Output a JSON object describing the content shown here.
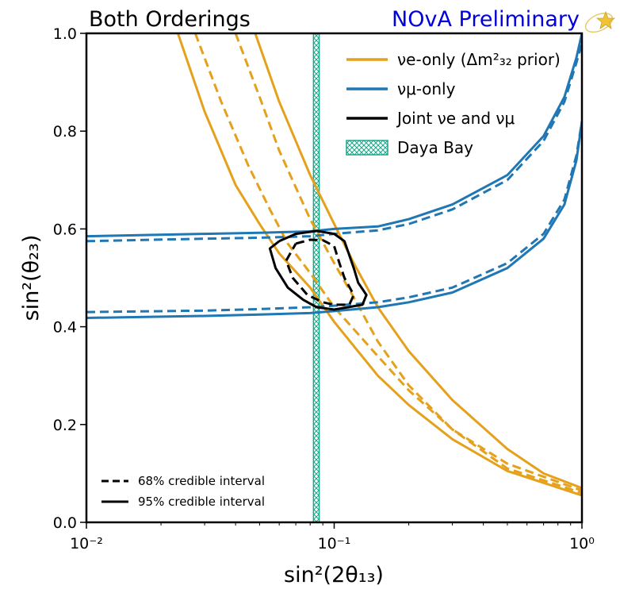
{
  "title_left": "Both Orderings",
  "title_right": "NOvA Preliminary",
  "chart_data": {
    "type": "line",
    "xlabel": "sin²(2θ₁₃)",
    "ylabel": "sin²(θ₂₃)",
    "xscale": "log",
    "xlim": [
      0.01,
      1.0
    ],
    "ylim": [
      0.0,
      1.0
    ],
    "x_tick_labels": [
      "10⁻²",
      "10⁻¹",
      "10⁰"
    ],
    "y_tick_labels": [
      "0.0",
      "0.2",
      "0.4",
      "0.6",
      "0.8",
      "1.0"
    ],
    "grid": false,
    "legend_position": "top-right",
    "legend": [
      {
        "label": "νe-only (Δm²₃₂ prior)",
        "color": "#e5a11b",
        "style": "line"
      },
      {
        "label": "νμ-only",
        "color": "#1f77b4",
        "style": "line"
      },
      {
        "label": "Joint νe and νμ",
        "color": "#000000",
        "style": "line"
      },
      {
        "label": "Daya Bay",
        "color": "#1aa68a",
        "style": "hatched-band"
      }
    ],
    "line_style_legend": [
      {
        "label": "68% credible interval",
        "dash": "dashed"
      },
      {
        "label": "95% credible interval",
        "dash": "solid"
      }
    ],
    "series": [
      {
        "group": "νe-only",
        "interval": "95%",
        "dash": "solid",
        "color": "#e5a11b",
        "points": [
          [
            0.0234,
            1.0
          ],
          [
            0.03,
            0.84
          ],
          [
            0.04,
            0.69
          ],
          [
            0.05,
            0.61
          ],
          [
            0.06,
            0.55
          ],
          [
            0.08,
            0.48
          ],
          [
            0.1,
            0.41
          ],
          [
            0.15,
            0.3
          ],
          [
            0.2,
            0.24
          ],
          [
            0.3,
            0.17
          ],
          [
            0.5,
            0.105
          ],
          [
            1.0,
            0.055
          ]
        ]
      },
      {
        "group": "νe-only",
        "interval": "68%",
        "dash": "dashed",
        "color": "#e5a11b",
        "points": [
          [
            0.0275,
            1.0
          ],
          [
            0.035,
            0.86
          ],
          [
            0.045,
            0.73
          ],
          [
            0.055,
            0.64
          ],
          [
            0.065,
            0.57
          ],
          [
            0.08,
            0.51
          ],
          [
            0.1,
            0.44
          ],
          [
            0.15,
            0.34
          ],
          [
            0.2,
            0.27
          ],
          [
            0.3,
            0.19
          ],
          [
            0.5,
            0.11
          ],
          [
            1.0,
            0.06
          ]
        ]
      },
      {
        "group": "νe-only",
        "interval": "68%",
        "dash": "dashed",
        "color": "#e5a11b",
        "points": [
          [
            0.04,
            1.0
          ],
          [
            0.05,
            0.87
          ],
          [
            0.06,
            0.76
          ],
          [
            0.08,
            0.62
          ],
          [
            0.1,
            0.53
          ],
          [
            0.12,
            0.46
          ],
          [
            0.15,
            0.37
          ],
          [
            0.2,
            0.28
          ],
          [
            0.3,
            0.19
          ],
          [
            0.5,
            0.12
          ],
          [
            1.0,
            0.065
          ]
        ]
      },
      {
        "group": "νe-only",
        "interval": "95%",
        "dash": "solid",
        "color": "#e5a11b",
        "points": [
          [
            0.048,
            1.0
          ],
          [
            0.06,
            0.86
          ],
          [
            0.08,
            0.71
          ],
          [
            0.1,
            0.61
          ],
          [
            0.12,
            0.53
          ],
          [
            0.15,
            0.44
          ],
          [
            0.2,
            0.35
          ],
          [
            0.3,
            0.25
          ],
          [
            0.5,
            0.15
          ],
          [
            0.7,
            0.1
          ],
          [
            1.0,
            0.07
          ]
        ]
      },
      {
        "group": "νμ-only",
        "interval": "95%",
        "dash": "solid",
        "color": "#1f77b4",
        "points": [
          [
            0.01,
            0.585
          ],
          [
            0.03,
            0.59
          ],
          [
            0.05,
            0.592
          ],
          [
            0.08,
            0.595
          ],
          [
            0.1,
            0.6
          ],
          [
            0.15,
            0.605
          ],
          [
            0.2,
            0.62
          ],
          [
            0.3,
            0.65
          ],
          [
            0.5,
            0.71
          ],
          [
            0.7,
            0.79
          ],
          [
            0.85,
            0.87
          ],
          [
            0.95,
            0.95
          ],
          [
            1.0,
            1.0
          ]
        ]
      },
      {
        "group": "νμ-only",
        "interval": "68%",
        "dash": "dashed",
        "color": "#1f77b4",
        "points": [
          [
            0.01,
            0.575
          ],
          [
            0.03,
            0.58
          ],
          [
            0.05,
            0.582
          ],
          [
            0.08,
            0.585
          ],
          [
            0.1,
            0.59
          ],
          [
            0.15,
            0.597
          ],
          [
            0.2,
            0.61
          ],
          [
            0.3,
            0.64
          ],
          [
            0.5,
            0.7
          ],
          [
            0.7,
            0.78
          ],
          [
            0.85,
            0.86
          ],
          [
            0.95,
            0.94
          ],
          [
            1.0,
            0.98
          ]
        ]
      },
      {
        "group": "νμ-only",
        "interval": "68%",
        "dash": "dashed",
        "color": "#1f77b4",
        "points": [
          [
            0.01,
            0.43
          ],
          [
            0.03,
            0.433
          ],
          [
            0.05,
            0.436
          ],
          [
            0.08,
            0.44
          ],
          [
            0.1,
            0.443
          ],
          [
            0.15,
            0.45
          ],
          [
            0.2,
            0.46
          ],
          [
            0.3,
            0.48
          ],
          [
            0.5,
            0.53
          ],
          [
            0.7,
            0.59
          ],
          [
            0.85,
            0.66
          ],
          [
            0.95,
            0.75
          ],
          [
            1.0,
            0.82
          ]
        ]
      },
      {
        "group": "νμ-only",
        "interval": "95%",
        "dash": "solid",
        "color": "#1f77b4",
        "points": [
          [
            0.01,
            0.418
          ],
          [
            0.03,
            0.422
          ],
          [
            0.05,
            0.425
          ],
          [
            0.08,
            0.428
          ],
          [
            0.1,
            0.432
          ],
          [
            0.15,
            0.44
          ],
          [
            0.2,
            0.45
          ],
          [
            0.3,
            0.47
          ],
          [
            0.5,
            0.52
          ],
          [
            0.7,
            0.58
          ],
          [
            0.85,
            0.65
          ],
          [
            0.95,
            0.74
          ],
          [
            1.0,
            0.82
          ]
        ]
      },
      {
        "group": "Joint",
        "interval": "95%",
        "dash": "solid",
        "color": "#000000",
        "points": [
          [
            0.06,
            0.575
          ],
          [
            0.07,
            0.59
          ],
          [
            0.085,
            0.596
          ],
          [
            0.1,
            0.59
          ],
          [
            0.11,
            0.575
          ],
          [
            0.12,
            0.52
          ],
          [
            0.125,
            0.49
          ],
          [
            0.135,
            0.465
          ],
          [
            0.13,
            0.445
          ],
          [
            0.1,
            0.435
          ],
          [
            0.085,
            0.44
          ],
          [
            0.075,
            0.455
          ],
          [
            0.065,
            0.48
          ],
          [
            0.058,
            0.52
          ],
          [
            0.055,
            0.56
          ],
          [
            0.06,
            0.575
          ]
        ]
      },
      {
        "group": "Joint",
        "interval": "68%",
        "dash": "dashed",
        "color": "#000000",
        "points": [
          [
            0.07,
            0.57
          ],
          [
            0.08,
            0.578
          ],
          [
            0.09,
            0.577
          ],
          [
            0.1,
            0.565
          ],
          [
            0.105,
            0.53
          ],
          [
            0.11,
            0.5
          ],
          [
            0.12,
            0.465
          ],
          [
            0.115,
            0.445
          ],
          [
            0.1,
            0.445
          ],
          [
            0.09,
            0.45
          ],
          [
            0.078,
            0.465
          ],
          [
            0.068,
            0.5
          ],
          [
            0.064,
            0.535
          ],
          [
            0.07,
            0.57
          ]
        ]
      }
    ],
    "bands": [
      {
        "label": "Daya Bay",
        "x_range": [
          0.0825,
          0.087
        ],
        "color": "#1aa68a",
        "fill": "cross-hatch"
      }
    ]
  }
}
